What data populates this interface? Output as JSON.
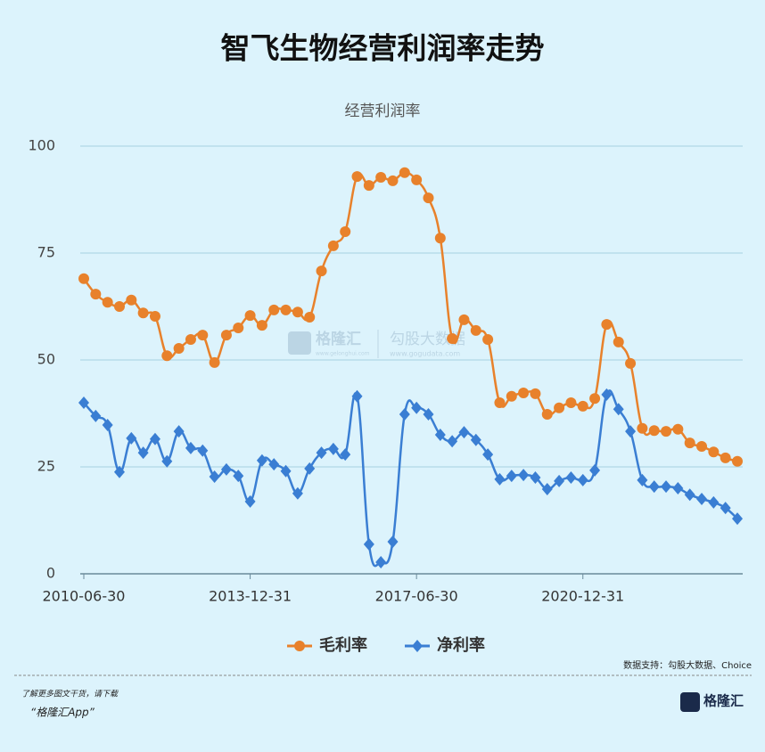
{
  "chart_data": {
    "type": "line",
    "title": "智飞生物经营利润率走势",
    "subtitle": "经营利润率",
    "categories": [
      "2010-06-30",
      null,
      null,
      null,
      null,
      null,
      null,
      null,
      null,
      null,
      null,
      null,
      null,
      null,
      "2013-12-31",
      null,
      null,
      null,
      null,
      null,
      null,
      null,
      null,
      null,
      null,
      null,
      null,
      null,
      "2017-06-30",
      null,
      null,
      null,
      null,
      null,
      null,
      null,
      null,
      null,
      null,
      null,
      null,
      null,
      "2020-12-31",
      null,
      null,
      null,
      null,
      null,
      null,
      null,
      null,
      null,
      null,
      null,
      null,
      null
    ],
    "series": [
      {
        "name": "毛利率",
        "color": "#e8812b",
        "marker": "circle",
        "values": [
          69,
          65.4,
          63.5,
          62.5,
          64,
          61,
          60.2,
          51,
          52.7,
          54.8,
          55.8,
          49.4,
          55.8,
          57.5,
          60.4,
          58.1,
          61.7,
          61.7,
          61.2,
          60,
          70.8,
          76.7,
          80,
          92.9,
          90.8,
          92.7,
          91.9,
          93.8,
          92.1,
          87.9,
          78.5,
          55,
          59.4,
          56.9,
          54.8,
          40,
          41.5,
          42.3,
          42.1,
          37.3,
          38.8,
          40,
          39.2,
          41,
          58.3,
          54.2,
          49.2,
          34,
          33.5,
          33.3,
          33.8,
          30.6,
          29.8,
          28.5,
          27.1,
          26.3
        ]
      },
      {
        "name": "净利率",
        "color": "#3a7ed3",
        "marker": "diamond",
        "values": [
          40,
          36.9,
          34.8,
          23.8,
          31.7,
          28.3,
          31.5,
          26.3,
          33.3,
          29.4,
          28.8,
          22.7,
          24.4,
          22.9,
          16.9,
          26.5,
          25.6,
          24,
          18.8,
          24.6,
          28.3,
          29.2,
          27.9,
          41.5,
          6.9,
          2.7,
          7.5,
          37.3,
          38.8,
          37.3,
          32.5,
          31,
          33.1,
          31.3,
          27.9,
          22.1,
          22.9,
          23.1,
          22.5,
          19.8,
          21.7,
          22.5,
          21.9,
          24.2,
          41.9,
          38.5,
          33.3,
          21.9,
          20.4,
          20.4,
          20,
          18.5,
          17.5,
          16.7,
          15.4,
          12.9
        ]
      }
    ],
    "ylim": [
      0,
      100
    ],
    "yticks": [
      0,
      25,
      50,
      75,
      100
    ],
    "grid": true,
    "smooth": true,
    "legend": "bottom"
  },
  "watermark": {
    "brand": "格隆汇",
    "brand_url": "www.gelonghui.com",
    "partner": "勾股大数据",
    "partner_url": "www.gogudata.com"
  },
  "source": "数据支持：勾股大数据、Choice",
  "footer": {
    "note": "了解更多图文干货，请下载",
    "app": "“格隆汇App”",
    "logo": "格隆汇"
  }
}
